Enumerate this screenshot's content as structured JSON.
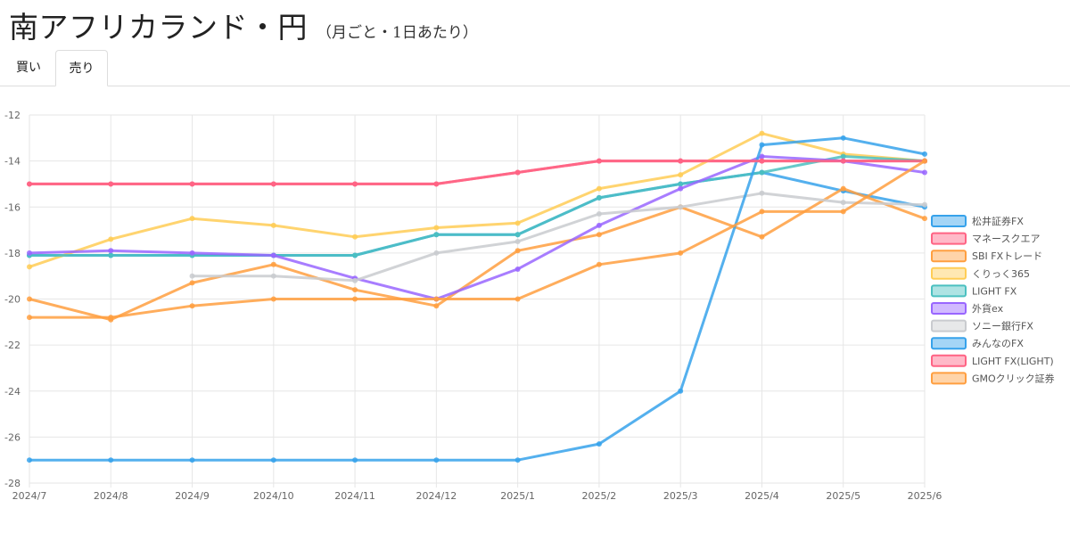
{
  "header": {
    "title": "南アフリカランド・円",
    "subtitle": "（月ごと・1日あたり）"
  },
  "tabs": [
    {
      "label": "買い",
      "active": false
    },
    {
      "label": "売り",
      "active": true
    }
  ],
  "chart_data": {
    "type": "line",
    "title": "",
    "xlabel": "",
    "ylabel": "",
    "categories": [
      "2024/7",
      "2024/8",
      "2024/9",
      "2024/10",
      "2024/11",
      "2024/12",
      "2025/1",
      "2025/2",
      "2025/3",
      "2025/4",
      "2025/5",
      "2025/6"
    ],
    "ylim": [
      -28,
      -12
    ],
    "yticks": [
      -12,
      -14,
      -16,
      -18,
      -20,
      -22,
      -24,
      -26,
      -28
    ],
    "grid": true,
    "legend_position": "right",
    "series": [
      {
        "name": "松井証券FX",
        "color": "#36a2eb",
        "values": [
          -18.1,
          -18.1,
          -18.1,
          -18.1,
          -18.1,
          -17.2,
          -17.2,
          -15.6,
          -15.0,
          -14.5,
          -15.3,
          -16.0
        ]
      },
      {
        "name": "マネースクエア",
        "color": "#ff6384",
        "values": [
          -15.0,
          -15.0,
          -15.0,
          -15.0,
          -15.0,
          -15.0,
          -14.5,
          -14.0,
          -14.0,
          -14.0,
          -14.0,
          -14.0
        ]
      },
      {
        "name": "SBI FXトレード",
        "color": "#ff9f40",
        "values": [
          -20.0,
          -20.9,
          -19.3,
          -18.5,
          -19.6,
          -20.3,
          -17.9,
          -17.2,
          -16.0,
          -17.3,
          -15.2,
          -16.5
        ]
      },
      {
        "name": "くりっく365",
        "color": "#ffcd56",
        "values": [
          -18.6,
          -17.4,
          -16.5,
          -16.8,
          -17.3,
          -16.9,
          -16.7,
          -15.2,
          -14.6,
          -12.8,
          -13.7,
          -14.0
        ]
      },
      {
        "name": "LIGHT FX",
        "color": "#4bc0c0",
        "values": [
          -18.1,
          -18.1,
          -18.1,
          -18.1,
          -18.1,
          -17.2,
          -17.2,
          -15.6,
          -15.0,
          -14.5,
          -13.8,
          -14.0
        ]
      },
      {
        "name": "外貨ex",
        "color": "#9966ff",
        "values": [
          -18.0,
          -17.9,
          -18.0,
          -18.1,
          -19.1,
          -20.0,
          -18.7,
          -16.8,
          -15.2,
          -13.8,
          -14.0,
          -14.5
        ]
      },
      {
        "name": "ソニー銀行FX",
        "color": "#c9cbcf",
        "values": [
          null,
          null,
          -19.0,
          -19.0,
          -19.2,
          -18.0,
          -17.5,
          -16.3,
          -16.0,
          -15.4,
          -15.8,
          -15.9
        ]
      },
      {
        "name": "みんなのFX",
        "color": "#36a2eb",
        "values": [
          -27.0,
          -27.0,
          -27.0,
          -27.0,
          -27.0,
          -27.0,
          -27.0,
          -26.3,
          -24.0,
          -13.3,
          -13.0,
          -13.7
        ]
      },
      {
        "name": "LIGHT FX(LIGHT)",
        "color": "#ff6384",
        "values": [
          -15.0,
          -15.0,
          -15.0,
          -15.0,
          -15.0,
          -15.0,
          -14.5,
          -14.0,
          -14.0,
          -14.0,
          -14.0,
          -14.0
        ]
      },
      {
        "name": "GMOクリック証券",
        "color": "#ff9f40",
        "values": [
          -20.8,
          -20.8,
          -20.3,
          -20.0,
          -20.0,
          -20.0,
          -20.0,
          -18.5,
          -18.0,
          -16.2,
          -16.2,
          -14.0
        ]
      }
    ]
  }
}
